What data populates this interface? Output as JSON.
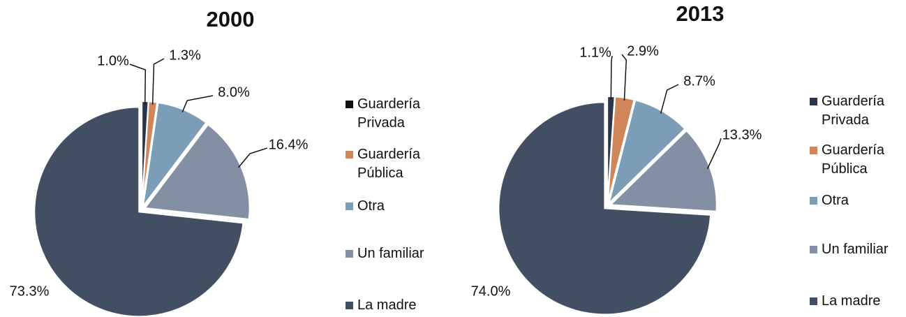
{
  "chart_data": [
    {
      "type": "pie",
      "title": "2000",
      "categories": [
        "Guardería Privada",
        "Guardería Pública",
        "Otra",
        "Un familiar",
        "La madre"
      ],
      "values": [
        1.0,
        1.3,
        8.0,
        16.4,
        73.3
      ],
      "value_labels": [
        "1.0%",
        "1.3%",
        "8.0%",
        "16.4%",
        "73.3%"
      ],
      "colors": [
        "#2b3548",
        "#d0855a",
        "#7b9db5",
        "#8390a3",
        "#424f63"
      ],
      "legend_colors": [
        "#111111",
        "#d0855a",
        "#7b9db5",
        "#8390a3",
        "#424f63"
      ]
    },
    {
      "type": "pie",
      "title": "2013",
      "categories": [
        "Guardería Privada",
        "Guardería Pública",
        "Otra",
        "Un familiar",
        "La madre"
      ],
      "values": [
        1.1,
        2.9,
        8.7,
        13.3,
        74.0
      ],
      "value_labels": [
        "1.1%",
        "2.9%",
        "8.7%",
        "13.3%",
        "74.0%"
      ],
      "colors": [
        "#2b3548",
        "#d0855a",
        "#7b9db5",
        "#8390a3",
        "#424f63"
      ],
      "legend_colors": [
        "#2b3548",
        "#d0855a",
        "#7b9db5",
        "#8390a3",
        "#424f63"
      ]
    }
  ]
}
